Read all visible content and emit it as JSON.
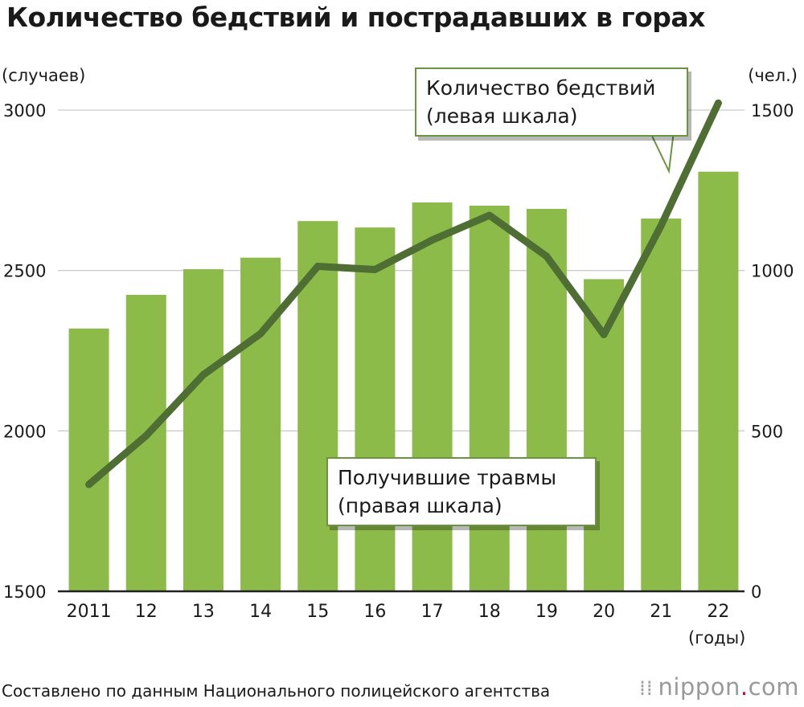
{
  "title": "Количество бедствий и пострадавших в горах",
  "units": {
    "left": "(случаев)",
    "right": "(чел.)",
    "x": "(годы)"
  },
  "callouts": {
    "incidents": [
      "Количество бедствий",
      "(левая шкала)"
    ],
    "injured": [
      "Получившие травмы",
      "(правая шкала)"
    ]
  },
  "source": "Составлено по данным Национального полицейского агентства",
  "brand": {
    "dots": "⁞⁞",
    "name": "nippon",
    "dot": ".",
    "tld": "com"
  },
  "colors": {
    "bar": "#8dbb49",
    "line": "#4f6e34",
    "grid": "#cccccc",
    "axis": "#222222"
  },
  "chart_data": {
    "type": "bar",
    "title": "Количество бедствий и пострадавших в горах",
    "categories": [
      "2011",
      "12",
      "13",
      "14",
      "15",
      "16",
      "17",
      "18",
      "19",
      "20",
      "21",
      "22"
    ],
    "series": [
      {
        "name": "Количество бедствий",
        "type": "bar",
        "axis": "left",
        "values": [
          2319,
          2424,
          2504,
          2540,
          2654,
          2634,
          2712,
          2702,
          2692,
          2473,
          2662,
          2808
        ]
      },
      {
        "name": "Получившие травмы",
        "type": "line",
        "axis": "right",
        "values": [
          333,
          485,
          675,
          803,
          1013,
          1003,
          1095,
          1172,
          1044,
          800,
          1140,
          1522
        ]
      }
    ],
    "left_axis": {
      "label": "(случаев)",
      "ylim": [
        1500,
        3000
      ],
      "ticks": [
        1500,
        2000,
        2500,
        3000
      ]
    },
    "right_axis": {
      "label": "(чел.)",
      "ylim": [
        0,
        1500
      ],
      "ticks": [
        0,
        500,
        1000,
        1500
      ]
    },
    "xlabel": "(годы)",
    "grid": true
  }
}
